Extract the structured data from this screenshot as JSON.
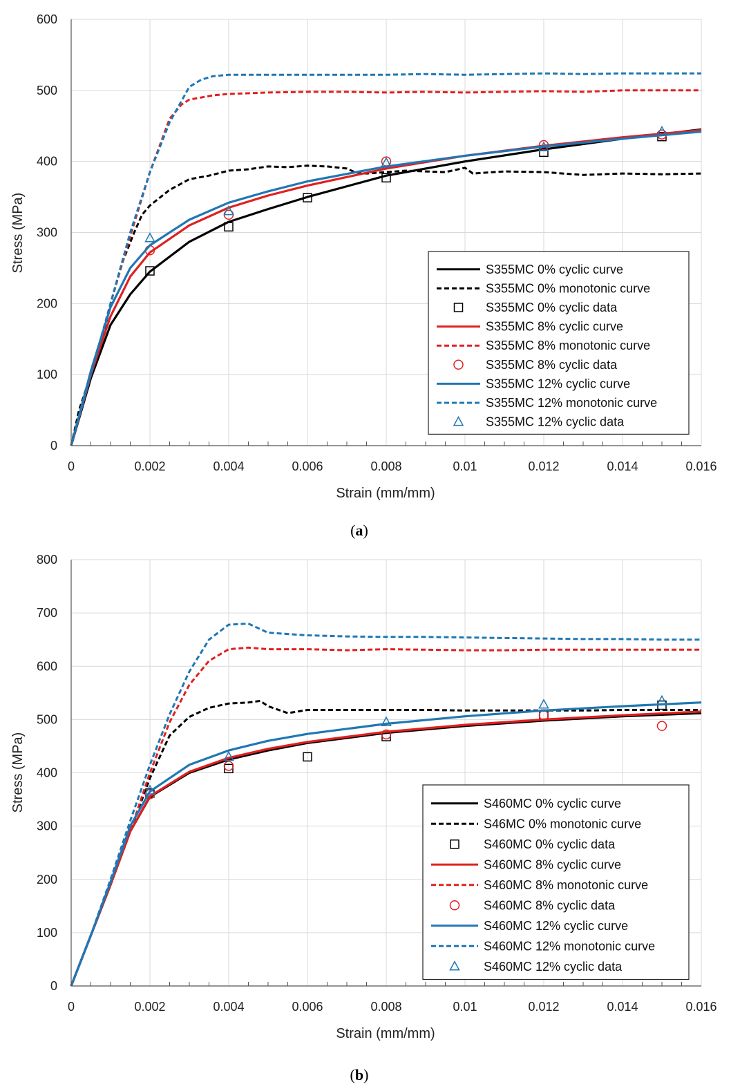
{
  "chart_data": [
    {
      "type": "line",
      "caption_letter": "a",
      "xlabel": "Strain (mm/mm)",
      "ylabel": "Stress (MPa)",
      "xlim": [
        0,
        0.016
      ],
      "ylim": [
        0,
        600
      ],
      "xticks": [
        0,
        0.002,
        0.004,
        0.006,
        0.008,
        0.01,
        0.012,
        0.014,
        0.016
      ],
      "xtick_labels": [
        "0",
        "0.002",
        "0.004",
        "0.006",
        "0.008",
        "0.01",
        "0.012",
        "0.014",
        "0.016"
      ],
      "yticks": [
        0,
        100,
        200,
        300,
        400,
        500,
        600
      ],
      "ytick_labels": [
        "0",
        "100",
        "200",
        "300",
        "400",
        "500",
        "600"
      ],
      "grid": true,
      "legend_position": "right",
      "series": [
        {
          "name": "S355MC 0% cyclic curve",
          "style": "solid",
          "color": "#000000",
          "x": [
            0,
            0.0005,
            0.001,
            0.0015,
            0.002,
            0.003,
            0.004,
            0.005,
            0.006,
            0.008,
            0.01,
            0.012,
            0.014,
            0.016
          ],
          "y": [
            0,
            95,
            170,
            213,
            245,
            287,
            315,
            333,
            350,
            380,
            400,
            417,
            432,
            445
          ]
        },
        {
          "name": "S355MC 0% monotonic curve",
          "style": "dashed",
          "color": "#000000",
          "x": [
            0,
            0.0002,
            0.0005,
            0.0008,
            0.001,
            0.0013,
            0.0016,
            0.0018,
            0.002,
            0.0025,
            0.003,
            0.0035,
            0.004,
            0.0045,
            0.005,
            0.0055,
            0.006,
            0.0065,
            0.007,
            0.0072,
            0.0075,
            0.008,
            0.0085,
            0.009,
            0.0095,
            0.01,
            0.0102,
            0.011,
            0.012,
            0.013,
            0.014,
            0.015,
            0.016
          ],
          "y": [
            0,
            50,
            100,
            150,
            200,
            258,
            300,
            325,
            338,
            360,
            375,
            380,
            387,
            389,
            393,
            392,
            394,
            393,
            390,
            385,
            383,
            385,
            387,
            386,
            385,
            391,
            383,
            386,
            385,
            381,
            383,
            382,
            383
          ]
        },
        {
          "name": "S355MC 0% cyclic data",
          "style": "marker",
          "marker": "square",
          "color": "#000000",
          "x": [
            0.002,
            0.004,
            0.006,
            0.008,
            0.012,
            0.015
          ],
          "y": [
            246,
            308,
            349,
            377,
            413,
            435
          ]
        },
        {
          "name": "S355MC 8% cyclic curve",
          "style": "solid",
          "color": "#e02020",
          "x": [
            0,
            0.0005,
            0.001,
            0.0015,
            0.002,
            0.003,
            0.004,
            0.005,
            0.006,
            0.008,
            0.01,
            0.012,
            0.014,
            0.016
          ],
          "y": [
            0,
            100,
            182,
            238,
            272,
            310,
            335,
            352,
            366,
            390,
            408,
            422,
            434,
            444
          ]
        },
        {
          "name": "S355MC 8% monotonic curve",
          "style": "dashed",
          "color": "#e02020",
          "x": [
            0,
            0.0005,
            0.001,
            0.0015,
            0.002,
            0.0025,
            0.0028,
            0.003,
            0.0033,
            0.0036,
            0.004,
            0.005,
            0.006,
            0.007,
            0.008,
            0.009,
            0.01,
            0.011,
            0.012,
            0.013,
            0.014,
            0.015,
            0.016
          ],
          "y": [
            0,
            100,
            200,
            295,
            385,
            460,
            480,
            487,
            490,
            493,
            495,
            497,
            498,
            498,
            497,
            498,
            497,
            498,
            499,
            498,
            500,
            500,
            500
          ]
        },
        {
          "name": "S355MC 8% cyclic data",
          "style": "marker",
          "marker": "circle",
          "color": "#e02020",
          "x": [
            0.002,
            0.004,
            0.008,
            0.012,
            0.015
          ],
          "y": [
            275,
            325,
            400,
            423,
            438
          ]
        },
        {
          "name": "S355MC 12% cyclic curve",
          "style": "solid",
          "color": "#1f77b4",
          "x": [
            0,
            0.0005,
            0.001,
            0.0015,
            0.002,
            0.003,
            0.004,
            0.005,
            0.006,
            0.008,
            0.01,
            0.012,
            0.014,
            0.016
          ],
          "y": [
            0,
            105,
            195,
            250,
            282,
            318,
            342,
            358,
            372,
            393,
            408,
            421,
            432,
            442
          ]
        },
        {
          "name": "S355MC 12% monotonic curve",
          "style": "dashed",
          "color": "#1f77b4",
          "x": [
            0,
            0.0005,
            0.001,
            0.0015,
            0.002,
            0.0025,
            0.003,
            0.0033,
            0.0036,
            0.004,
            0.005,
            0.006,
            0.007,
            0.008,
            0.009,
            0.01,
            0.011,
            0.012,
            0.013,
            0.014,
            0.015,
            0.016
          ],
          "y": [
            0,
            100,
            200,
            300,
            385,
            455,
            505,
            515,
            520,
            522,
            522,
            522,
            522,
            522,
            523,
            522,
            523,
            524,
            523,
            524,
            524,
            524
          ]
        },
        {
          "name": "S355MC 12% cyclic data",
          "style": "marker",
          "marker": "triangle",
          "color": "#1f77b4",
          "x": [
            0.002,
            0.004,
            0.008,
            0.012,
            0.015
          ],
          "y": [
            292,
            330,
            398,
            420,
            442
          ]
        }
      ]
    },
    {
      "type": "line",
      "caption_letter": "b",
      "xlabel": "Strain (mm/mm)",
      "ylabel": "Stress (MPa)",
      "xlim": [
        0,
        0.016
      ],
      "ylim": [
        0,
        800
      ],
      "xticks": [
        0,
        0.002,
        0.004,
        0.006,
        0.008,
        0.01,
        0.012,
        0.014,
        0.016
      ],
      "xtick_labels": [
        "0",
        "0.002",
        "0.004",
        "0.006",
        "0.008",
        "0.01",
        "0.012",
        "0.014",
        "0.016"
      ],
      "yticks": [
        0,
        100,
        200,
        300,
        400,
        500,
        600,
        700,
        800
      ],
      "ytick_labels": [
        "0",
        "100",
        "200",
        "300",
        "400",
        "500",
        "600",
        "700",
        "800"
      ],
      "grid": true,
      "legend_position": "right",
      "series": [
        {
          "name": "S460MC 0% cyclic curve",
          "style": "solid",
          "color": "#000000",
          "x": [
            0,
            0.0005,
            0.001,
            0.0015,
            0.002,
            0.003,
            0.004,
            0.005,
            0.006,
            0.008,
            0.01,
            0.012,
            0.014,
            0.016
          ],
          "y": [
            0,
            95,
            190,
            290,
            355,
            400,
            425,
            442,
            456,
            475,
            488,
            498,
            506,
            512
          ]
        },
        {
          "name": "S46MC 0% monotonic curve",
          "style": "dashed",
          "color": "#000000",
          "x": [
            0,
            0.0005,
            0.001,
            0.0015,
            0.002,
            0.0025,
            0.003,
            0.0035,
            0.004,
            0.0045,
            0.0048,
            0.005,
            0.0055,
            0.006,
            0.007,
            0.008,
            0.009,
            0.01,
            0.011,
            0.012,
            0.013,
            0.014,
            0.015,
            0.016
          ],
          "y": [
            0,
            95,
            190,
            290,
            390,
            470,
            505,
            522,
            530,
            532,
            535,
            525,
            512,
            518,
            518,
            518,
            518,
            517,
            517,
            517,
            517,
            518,
            518,
            518
          ]
        },
        {
          "name": "S460MC 0% cyclic data",
          "style": "marker",
          "marker": "square",
          "color": "#000000",
          "x": [
            0.002,
            0.004,
            0.006,
            0.008,
            0.012,
            0.015
          ],
          "y": [
            362,
            408,
            430,
            468,
            508,
            527
          ]
        },
        {
          "name": "S460MC 8% cyclic curve",
          "style": "solid",
          "color": "#e02020",
          "x": [
            0,
            0.0005,
            0.001,
            0.0015,
            0.002,
            0.003,
            0.004,
            0.005,
            0.006,
            0.008,
            0.01,
            0.012,
            0.014,
            0.016
          ],
          "y": [
            0,
            95,
            190,
            290,
            356,
            402,
            428,
            445,
            458,
            477,
            490,
            500,
            508,
            515
          ]
        },
        {
          "name": "S460MC 8% monotonic curve",
          "style": "dashed",
          "color": "#e02020",
          "x": [
            0,
            0.0005,
            0.001,
            0.0015,
            0.002,
            0.0025,
            0.003,
            0.0035,
            0.004,
            0.0045,
            0.005,
            0.006,
            0.007,
            0.008,
            0.009,
            0.01,
            0.011,
            0.012,
            0.013,
            0.014,
            0.015,
            0.016
          ],
          "y": [
            0,
            95,
            190,
            290,
            400,
            495,
            565,
            610,
            632,
            635,
            632,
            632,
            630,
            632,
            631,
            630,
            630,
            631,
            631,
            631,
            631,
            631
          ]
        },
        {
          "name": "S460MC 8% cyclic data",
          "style": "marker",
          "marker": "circle",
          "color": "#e02020",
          "x": [
            0.002,
            0.004,
            0.008,
            0.012,
            0.015
          ],
          "y": [
            360,
            413,
            472,
            508,
            488
          ]
        },
        {
          "name": "S460MC 12% cyclic curve",
          "style": "solid",
          "color": "#1f77b4",
          "x": [
            0,
            0.0005,
            0.001,
            0.0015,
            0.002,
            0.003,
            0.004,
            0.005,
            0.006,
            0.008,
            0.01,
            0.012,
            0.014,
            0.016
          ],
          "y": [
            0,
            95,
            195,
            300,
            365,
            415,
            442,
            460,
            473,
            492,
            506,
            517,
            525,
            532
          ]
        },
        {
          "name": "S460MC 12% monotonic curve",
          "style": "dashed",
          "color": "#1f77b4",
          "x": [
            0,
            0.0005,
            0.001,
            0.0015,
            0.002,
            0.0025,
            0.003,
            0.0035,
            0.004,
            0.0045,
            0.005,
            0.006,
            0.007,
            0.008,
            0.009,
            0.01,
            0.011,
            0.012,
            0.013,
            0.014,
            0.015,
            0.016
          ],
          "y": [
            0,
            95,
            200,
            310,
            415,
            510,
            590,
            650,
            678,
            680,
            663,
            658,
            656,
            655,
            655,
            654,
            653,
            652,
            651,
            651,
            650,
            650
          ]
        },
        {
          "name": "S460MC 12% cyclic data",
          "style": "marker",
          "marker": "triangle",
          "color": "#1f77b4",
          "x": [
            0.002,
            0.004,
            0.008,
            0.012,
            0.015
          ],
          "y": [
            367,
            430,
            495,
            528,
            535
          ]
        }
      ]
    }
  ]
}
